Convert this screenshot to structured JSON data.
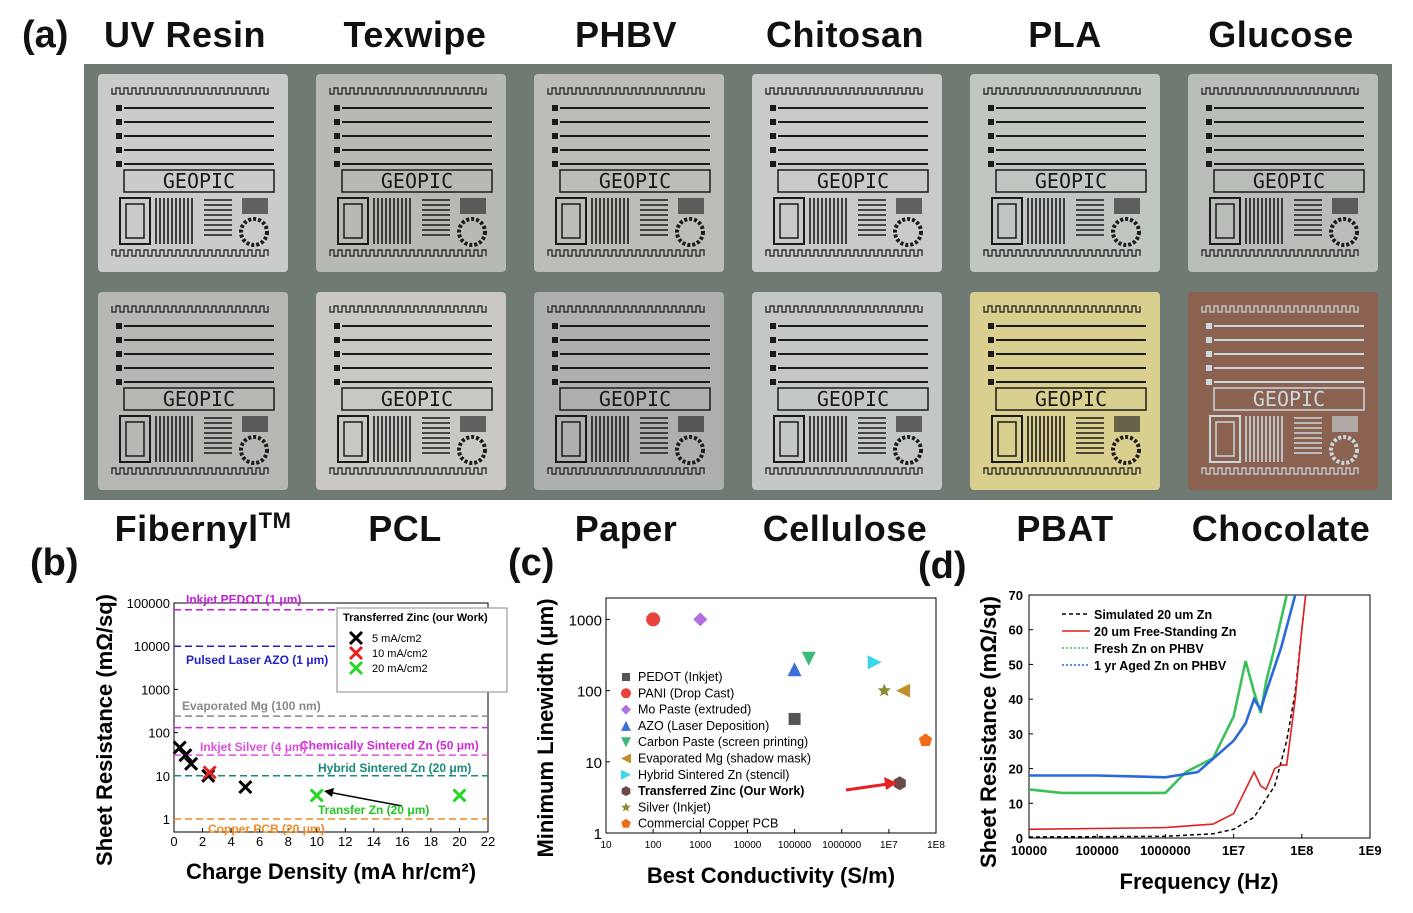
{
  "panel_a": {
    "label": "(a)",
    "top_row": [
      {
        "name": "UV Resin",
        "color": "#c9ccc8"
      },
      {
        "name": "Texwipe",
        "color": "#b7b9b3"
      },
      {
        "name": "PHBV",
        "color": "#bcbdb7"
      },
      {
        "name": "Chitosan",
        "color": "#c8cbc8"
      },
      {
        "name": "PLA",
        "color": "#c0c6c0"
      },
      {
        "name": "Glucose",
        "color": "#b9bdb8"
      }
    ],
    "bottom_row": [
      {
        "name": "Fibernyl",
        "sup": "TM",
        "color": "#b7b8b4"
      },
      {
        "name": "PCL",
        "color": "#c9c8c2"
      },
      {
        "name": "Paper",
        "color": "#aeb0ae"
      },
      {
        "name": "Cellulose",
        "color": "#c4c7c8"
      },
      {
        "name": "PBAT",
        "color": "#d9cf8f"
      },
      {
        "name": "Chocolate",
        "color": "#8b6150"
      }
    ],
    "chip_text": "GEOPIC"
  },
  "chart_data": [
    {
      "id": "b",
      "label": "(b)",
      "type": "scatter",
      "xlabel": "Charge Density (mA hr/cm²)",
      "ylabel": "Sheet Resistance (mΩ/sq)",
      "xlim": [
        0,
        22
      ],
      "xticks": [
        "0",
        "2",
        "4",
        "6",
        "8",
        "10",
        "12",
        "14",
        "16",
        "18",
        "20",
        "22"
      ],
      "yscale": "log",
      "ylim": [
        0.5,
        100000
      ],
      "yticks": [
        "1",
        "10",
        "100",
        "1000",
        "10000",
        "100000"
      ],
      "legend_title": "Transferred Zinc (our Work)",
      "series": [
        {
          "name": "5 mA/cm2",
          "color": "#000000",
          "x": [
            0.4,
            0.8,
            1.2,
            2.4,
            5.0
          ],
          "y": [
            45,
            30,
            19,
            10,
            5.5
          ]
        },
        {
          "name": "10 mA/cm2",
          "color": "#e8201c",
          "x": [
            2.5
          ],
          "y": [
            12
          ]
        },
        {
          "name": "20 mA/cm2",
          "color": "#22d822",
          "x": [
            10,
            20
          ],
          "y": [
            3.5,
            3.5
          ]
        }
      ],
      "reference_lines": [
        {
          "label": "Inkjet PEDOT (1 μm)",
          "y": 70000,
          "color": "#c020d8"
        },
        {
          "label": "Pulsed Laser AZO (1 μm)",
          "y": 10000,
          "color": "#2020c8"
        },
        {
          "label": "Evaporated Mg (100 nm)",
          "y": 240,
          "color": "#888888"
        },
        {
          "label": "Chemically Sintered Zn (50 μm)",
          "y": 130,
          "color": "#d028d8"
        },
        {
          "label": "Inkjet Silver (4 μm)",
          "y": 30,
          "color": "#e050e0"
        },
        {
          "label": "Hybrid Sintered Zn (20 μm)",
          "y": 10,
          "color": "#1a8a78"
        },
        {
          "label": "Copper PCB (20 μm)",
          "y": 1,
          "color": "#f08a20"
        }
      ],
      "annotation": "Transfer Zn (20 μm)"
    },
    {
      "id": "c",
      "label": "(c)",
      "type": "scatter",
      "xlabel": "Best Conductivity (S/m)",
      "ylabel": "Minimum Linewidth (μm)",
      "xscale": "log",
      "xlim": [
        10,
        100000000
      ],
      "xticks": [
        "10",
        "100",
        "1000",
        "10000",
        "100000",
        "1000000",
        "1E7",
        "1E8"
      ],
      "yscale": "log",
      "ylim": [
        1,
        2000
      ],
      "yticks": [
        "1",
        "10",
        "100",
        "1000"
      ],
      "series": [
        {
          "name": "PEDOT (Inkjet)",
          "color": "#555555",
          "marker": "square",
          "x": [
            100000
          ],
          "y": [
            40
          ]
        },
        {
          "name": "PANI (Drop Cast)",
          "color": "#e8423c",
          "marker": "circle",
          "x": [
            100
          ],
          "y": [
            1000
          ]
        },
        {
          "name": "Mo Paste (extruded)",
          "color": "#b070e0",
          "marker": "diamond",
          "x": [
            1000
          ],
          "y": [
            1000
          ]
        },
        {
          "name": "AZO (Laser Deposition)",
          "color": "#3a6ed8",
          "marker": "triangle-up",
          "x": [
            100000
          ],
          "y": [
            200
          ]
        },
        {
          "name": "Carbon Paste (screen printing)",
          "color": "#3cb878",
          "marker": "triangle-down",
          "x": [
            200000
          ],
          "y": [
            280
          ]
        },
        {
          "name": "Evaporated Mg (shadow mask)",
          "color": "#c09028",
          "marker": "triangle-left",
          "x": [
            20000000
          ],
          "y": [
            100
          ]
        },
        {
          "name": "Hybrid Sintered Zn (stencil)",
          "color": "#38d8e8",
          "marker": "triangle-right",
          "x": [
            5000000
          ],
          "y": [
            250
          ]
        },
        {
          "name": "Transferred Zinc (Our Work)",
          "color": "#6a4a48",
          "marker": "hexagon",
          "x": [
            17000000
          ],
          "y": [
            5
          ]
        },
        {
          "name": "Silver (Inkjet)",
          "color": "#8a8a30",
          "marker": "star",
          "x": [
            8000000
          ],
          "y": [
            100
          ]
        },
        {
          "name": "Commercial Copper PCB",
          "color": "#f06c18",
          "marker": "pentagon",
          "x": [
            60000000
          ],
          "y": [
            20
          ]
        }
      ]
    },
    {
      "id": "d",
      "label": "(d)",
      "type": "line",
      "xlabel": "Frequency (Hz)",
      "ylabel": "Sheet Resistance (mΩ/sq)",
      "xscale": "log",
      "xlim": [
        10000,
        1000000000
      ],
      "xticks": [
        "10000",
        "100000",
        "1000000",
        "1E7",
        "1E8",
        "1E9"
      ],
      "ylim": [
        0,
        70
      ],
      "yticks": [
        "0",
        "10",
        "20",
        "30",
        "40",
        "50",
        "60",
        "70"
      ],
      "series": [
        {
          "name": "Simulated 20 um Zn",
          "color": "#000000",
          "dash": "4,3",
          "x": [
            10000,
            1000000,
            5000000,
            10000000,
            20000000,
            40000000,
            60000000,
            80000000,
            100000000,
            120000000
          ],
          "y": [
            0.3,
            0.5,
            1.2,
            2.5,
            6,
            15,
            28,
            42,
            60,
            74
          ]
        },
        {
          "name": "20 um Free-Standing Zn",
          "color": "#e02020",
          "x": [
            10000,
            1000000,
            5000000,
            10000000,
            15000000,
            20000000,
            25000000,
            30000000,
            40000000,
            50000000,
            60000000,
            80000000,
            100000000,
            120000000
          ],
          "y": [
            2.5,
            3,
            4,
            7,
            14,
            19,
            15,
            14,
            20,
            21,
            21,
            40,
            60,
            74
          ]
        },
        {
          "name": "Fresh Zn on PHBV",
          "color": "#3cc05a",
          "x": [
            10000,
            30000,
            100000,
            1000000,
            2000000,
            5000000,
            10000000,
            15000000,
            20000000,
            25000000,
            30000000,
            40000000,
            60000000
          ],
          "y": [
            14,
            13,
            13,
            13,
            19,
            23,
            35,
            51,
            42,
            36,
            45,
            55,
            70
          ]
        },
        {
          "name": "1 yr Aged Zn on PHBV",
          "color": "#2a6ad8",
          "x": [
            10000,
            100000,
            1000000,
            3000000,
            10000000,
            15000000,
            20000000,
            25000000,
            30000000,
            50000000,
            80000000
          ],
          "y": [
            18,
            18,
            17.5,
            19,
            28,
            33,
            40,
            37,
            42,
            55,
            70
          ]
        }
      ]
    }
  ]
}
